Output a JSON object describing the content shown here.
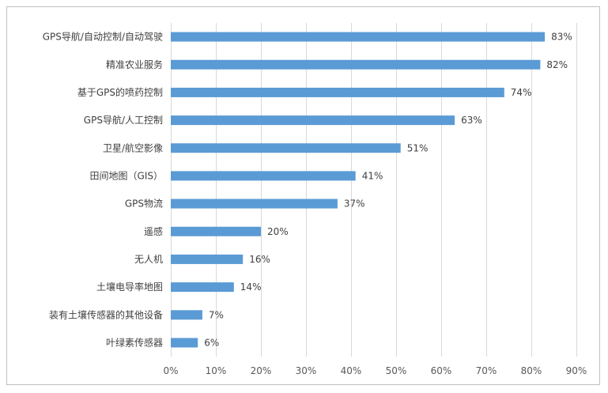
{
  "chart_data": {
    "type": "bar",
    "orientation": "horizontal",
    "categories": [
      "GPS导航/自动控制/自动驾驶",
      "精准农业服务",
      "基于GPS的喷药控制",
      "GPS导航/人工控制",
      "卫星/航空影像",
      "田间地图（GIS）",
      "GPS物流",
      "遥感",
      "无人机",
      "土壤电导率地图",
      "装有土壤传感器的其他设备",
      "叶绿素传感器"
    ],
    "values": [
      83,
      82,
      74,
      63,
      51,
      41,
      37,
      20,
      16,
      14,
      7,
      6
    ],
    "value_labels": [
      "83%",
      "82%",
      "74%",
      "63%",
      "51%",
      "41%",
      "37%",
      "20%",
      "16%",
      "14%",
      "7%",
      "6%"
    ],
    "xlim": [
      0,
      90
    ],
    "x_ticks": [
      0,
      10,
      20,
      30,
      40,
      50,
      60,
      70,
      80,
      90
    ],
    "x_tick_labels": [
      "0%",
      "10%",
      "20%",
      "30%",
      "40%",
      "50%",
      "60%",
      "70%",
      "80%",
      "90%"
    ],
    "grid": "vertical",
    "legend": "none",
    "title": "",
    "xlabel": "",
    "ylabel": ""
  },
  "colors": {
    "bar": "#5b9bd5",
    "grid": "#d9d9d9",
    "text": "#404040"
  }
}
